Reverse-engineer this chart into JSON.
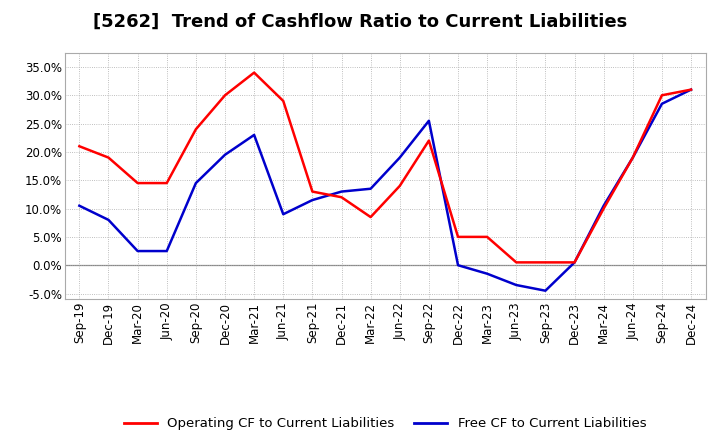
{
  "title": "[5262]  Trend of Cashflow Ratio to Current Liabilities",
  "x_labels": [
    "Sep-19",
    "Dec-19",
    "Mar-20",
    "Jun-20",
    "Sep-20",
    "Dec-20",
    "Mar-21",
    "Jun-21",
    "Sep-21",
    "Dec-21",
    "Mar-22",
    "Jun-22",
    "Sep-22",
    "Dec-22",
    "Mar-23",
    "Jun-23",
    "Sep-23",
    "Dec-23",
    "Mar-24",
    "Jun-24",
    "Sep-24",
    "Dec-24"
  ],
  "operating_cf": [
    0.21,
    0.19,
    0.145,
    0.145,
    0.24,
    0.3,
    0.34,
    0.29,
    0.13,
    0.12,
    0.085,
    0.14,
    0.22,
    0.05,
    0.05,
    0.005,
    0.005,
    0.005,
    0.1,
    0.19,
    0.3,
    0.31
  ],
  "free_cf": [
    0.105,
    0.08,
    0.025,
    0.025,
    0.145,
    0.195,
    0.23,
    0.09,
    0.115,
    0.13,
    0.135,
    0.19,
    0.255,
    0.0,
    -0.015,
    -0.035,
    -0.045,
    0.005,
    0.105,
    0.19,
    0.285,
    0.31
  ],
  "operating_color": "#FF0000",
  "free_color": "#0000CC",
  "ylim": [
    -0.06,
    0.375
  ],
  "yticks": [
    -0.05,
    0.0,
    0.05,
    0.1,
    0.15,
    0.2,
    0.25,
    0.3,
    0.35
  ],
  "legend_op": "Operating CF to Current Liabilities",
  "legend_free": "Free CF to Current Liabilities",
  "bg_color": "#FFFFFF",
  "plot_bg_color": "#FFFFFF",
  "grid_color": "#AAAAAA",
  "title_fontsize": 13,
  "axis_fontsize": 8.5,
  "legend_fontsize": 9.5,
  "line_width": 1.8
}
